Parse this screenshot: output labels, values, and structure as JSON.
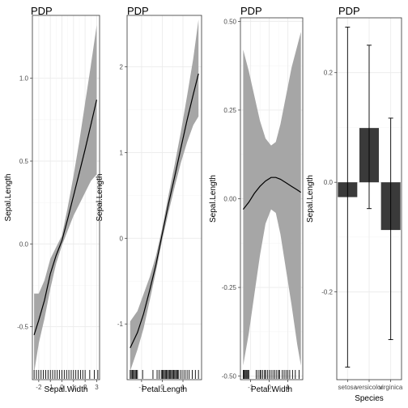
{
  "chart_data": [
    {
      "type": "line",
      "title": "PDP",
      "xlabel": "Sepal.Width",
      "ylabel": "Sepal.Length",
      "xlim": [
        -2.55,
        3.25
      ],
      "ylim": [
        -0.82,
        1.38
      ],
      "xticks": [
        -2,
        -1,
        0,
        1,
        2,
        3
      ],
      "yticks": [
        -0.5,
        0.0,
        0.5,
        1.0
      ],
      "ytick_labels": [
        "-0.5",
        "0.0",
        "0.5",
        "1.0"
      ],
      "grid": true,
      "series": [
        {
          "x": [
            -2.4,
            -2.0,
            -1.5,
            -1.0,
            -0.5,
            0.0,
            0.5,
            1.0,
            1.5,
            2.0,
            2.5,
            3.0
          ],
          "y": [
            -0.55,
            -0.46,
            -0.34,
            -0.18,
            -0.07,
            0.02,
            0.15,
            0.29,
            0.43,
            0.57,
            0.72,
            0.87
          ],
          "lower": [
            -0.78,
            -0.6,
            -0.45,
            -0.27,
            -0.12,
            -0.01,
            0.08,
            0.17,
            0.24,
            0.31,
            0.38,
            0.42
          ],
          "upper": [
            -0.3,
            -0.3,
            -0.22,
            -0.09,
            -0.02,
            0.05,
            0.22,
            0.41,
            0.62,
            0.85,
            1.08,
            1.32
          ]
        }
      ],
      "rug": [
        -2.4,
        -2.2,
        -2.0,
        -1.8,
        -1.6,
        -1.4,
        -1.2,
        -1.0,
        -0.8,
        -0.6,
        -0.4,
        -0.2,
        0.0,
        0.2,
        0.4,
        0.6,
        0.8,
        1.0,
        1.2,
        1.4,
        1.6,
        1.8,
        2.0,
        2.4,
        2.8,
        3.1
      ]
    },
    {
      "type": "line",
      "title": "PDP",
      "xlabel": "Petal.Length",
      "ylabel": "Sepal.Length",
      "xlim": [
        -1.7,
        1.9
      ],
      "ylim": [
        -1.65,
        2.6
      ],
      "xticks": [
        -1,
        0,
        1
      ],
      "yticks": [
        -1,
        0,
        1,
        2
      ],
      "ytick_labels": [
        "-1",
        "0",
        "1",
        "2"
      ],
      "grid": true,
      "series": [
        {
          "x": [
            -1.55,
            -1.2,
            -0.9,
            -0.6,
            -0.3,
            0.0,
            0.3,
            0.6,
            0.9,
            1.2,
            1.5,
            1.75
          ],
          "y": [
            -1.28,
            -1.1,
            -0.88,
            -0.6,
            -0.3,
            0.05,
            0.4,
            0.72,
            1.05,
            1.38,
            1.68,
            1.92
          ],
          "lower": [
            -1.55,
            -1.3,
            -1.05,
            -0.72,
            -0.38,
            -0.02,
            0.3,
            0.6,
            0.88,
            1.12,
            1.32,
            1.42
          ],
          "upper": [
            -0.97,
            -0.85,
            -0.65,
            -0.45,
            -0.2,
            0.12,
            0.5,
            0.86,
            1.24,
            1.66,
            2.1,
            2.55
          ]
        }
      ],
      "rug": [
        -1.55,
        -1.5,
        -1.45,
        -1.4,
        -1.35,
        -1.3,
        -1.25,
        -1.2,
        -0.95,
        -0.45,
        -0.25,
        -0.15,
        -0.05,
        0.0,
        0.05,
        0.1,
        0.15,
        0.2,
        0.25,
        0.3,
        0.35,
        0.4,
        0.45,
        0.5,
        0.55,
        0.6,
        0.65,
        0.7,
        0.75,
        0.8,
        0.9,
        1.0,
        1.1,
        1.2,
        1.3,
        1.45,
        1.6,
        1.75
      ]
    },
    {
      "type": "line",
      "title": "PDP",
      "xlabel": "Petal.Width",
      "ylabel": "Sepal.Length",
      "xlim": [
        -1.55,
        1.8
      ],
      "ylim": [
        -0.51,
        0.51
      ],
      "xticks": [
        -1,
        0,
        1
      ],
      "yticks": [
        -0.5,
        -0.25,
        0.0,
        0.25,
        0.5
      ],
      "ytick_labels": [
        "-0.50",
        "-0.25",
        "0.00",
        "0.25",
        "0.50"
      ],
      "grid": true,
      "series": [
        {
          "x": [
            -1.4,
            -1.1,
            -0.8,
            -0.5,
            -0.2,
            0.1,
            0.35,
            0.6,
            0.9,
            1.2,
            1.5,
            1.7
          ],
          "y": [
            -0.03,
            -0.01,
            0.015,
            0.035,
            0.05,
            0.06,
            0.06,
            0.055,
            0.045,
            0.035,
            0.025,
            0.018
          ],
          "lower": [
            -0.47,
            -0.38,
            -0.27,
            -0.16,
            -0.07,
            -0.03,
            -0.04,
            -0.1,
            -0.2,
            -0.3,
            -0.41,
            -0.47
          ],
          "upper": [
            0.42,
            0.36,
            0.29,
            0.22,
            0.17,
            0.15,
            0.16,
            0.21,
            0.29,
            0.37,
            0.43,
            0.47
          ]
        }
      ],
      "rug": [
        -1.4,
        -1.35,
        -1.3,
        -1.25,
        -1.2,
        -1.15,
        -1.1,
        -0.7,
        -0.6,
        -0.5,
        -0.45,
        -0.35,
        -0.25,
        -0.2,
        -0.1,
        0.0,
        0.1,
        0.2,
        0.3,
        0.4,
        0.5,
        0.55,
        0.7,
        0.8,
        0.9,
        1.0,
        1.1,
        1.25,
        1.4,
        1.6
      ]
    },
    {
      "type": "bar",
      "title": "PDP",
      "xlabel": "Species",
      "ylabel": "Sepal.Length",
      "categories": [
        "setosa",
        "versicolor",
        "virginica"
      ],
      "values": [
        -0.027,
        0.099,
        -0.087
      ],
      "error_lower": [
        -0.337,
        -0.048,
        -0.287
      ],
      "error_upper": [
        0.283,
        0.25,
        0.117
      ],
      "ylim": [
        -0.36,
        0.3
      ],
      "yticks": [
        -0.2,
        0.0,
        0.2
      ],
      "ytick_labels": [
        "-0.2",
        "0.0",
        "0.2"
      ],
      "grid": true
    }
  ]
}
